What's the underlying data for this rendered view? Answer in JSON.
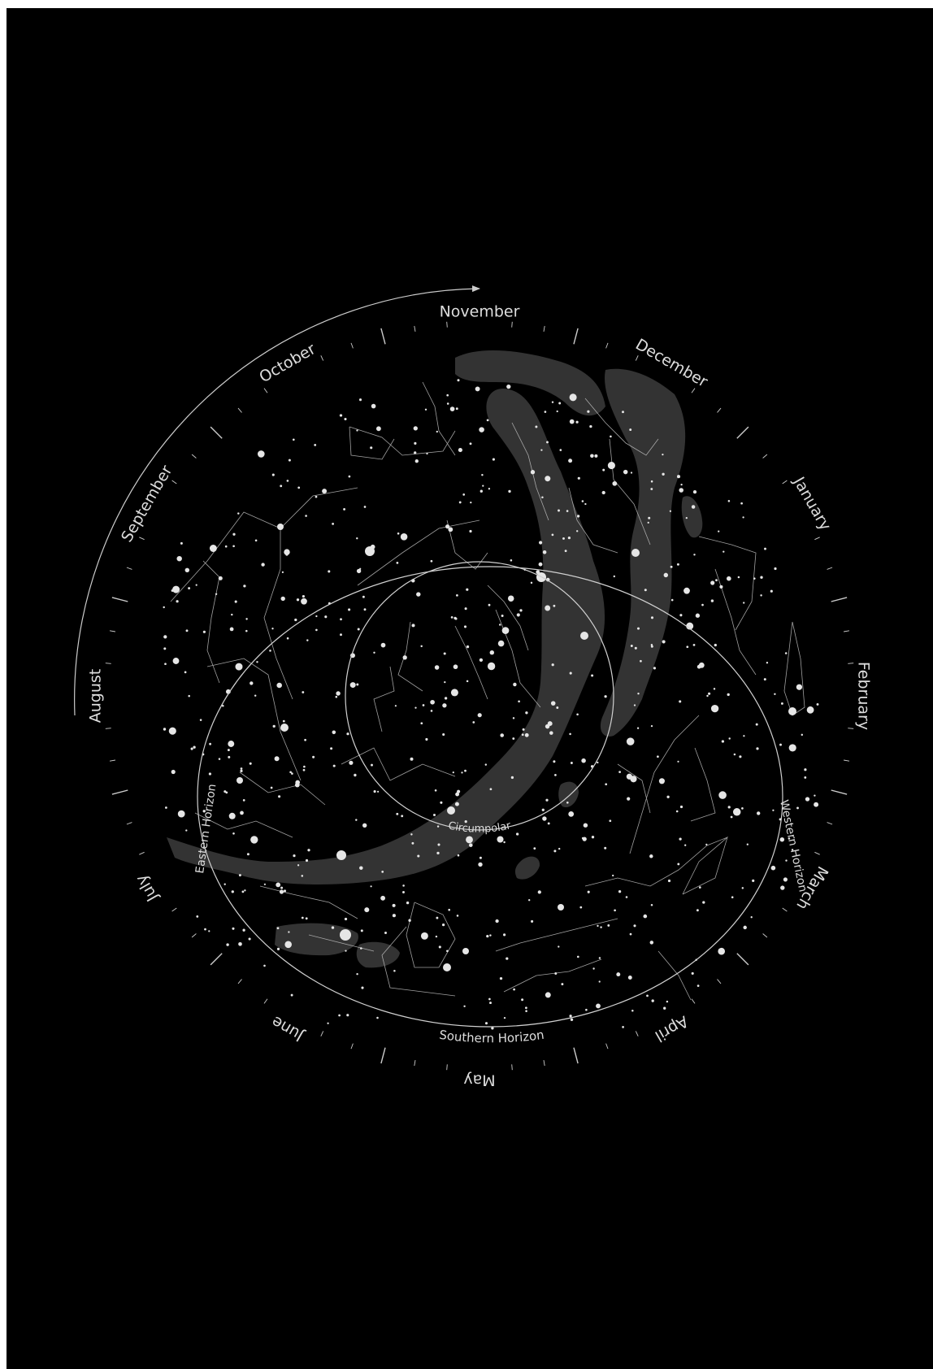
{
  "map": {
    "months": [
      {
        "label": "January",
        "angle": 60
      },
      {
        "label": "February",
        "angle": 90
      },
      {
        "label": "March",
        "angle": 120
      },
      {
        "label": "April",
        "angle": 150
      },
      {
        "label": "May",
        "angle": 180
      },
      {
        "label": "June",
        "angle": 210
      },
      {
        "label": "July",
        "angle": 240
      },
      {
        "label": "August",
        "angle": 270
      },
      {
        "label": "September",
        "angle": 300
      },
      {
        "label": "October",
        "angle": 330
      },
      {
        "label": "November",
        "angle": 0
      },
      {
        "label": "December",
        "angle": 30
      }
    ],
    "labels": {
      "circumpolar": "Circumpolar",
      "eastern_horizon": "Eastern Horizon",
      "western_horizon": "Western Horizon",
      "southern_horizon": "Southern Horizon"
    },
    "colors": {
      "background": "#000000",
      "milky_way": "#333333",
      "lines": "#d0d0d0",
      "stars": "#e6e6e6",
      "text": "#dddddd"
    }
  }
}
